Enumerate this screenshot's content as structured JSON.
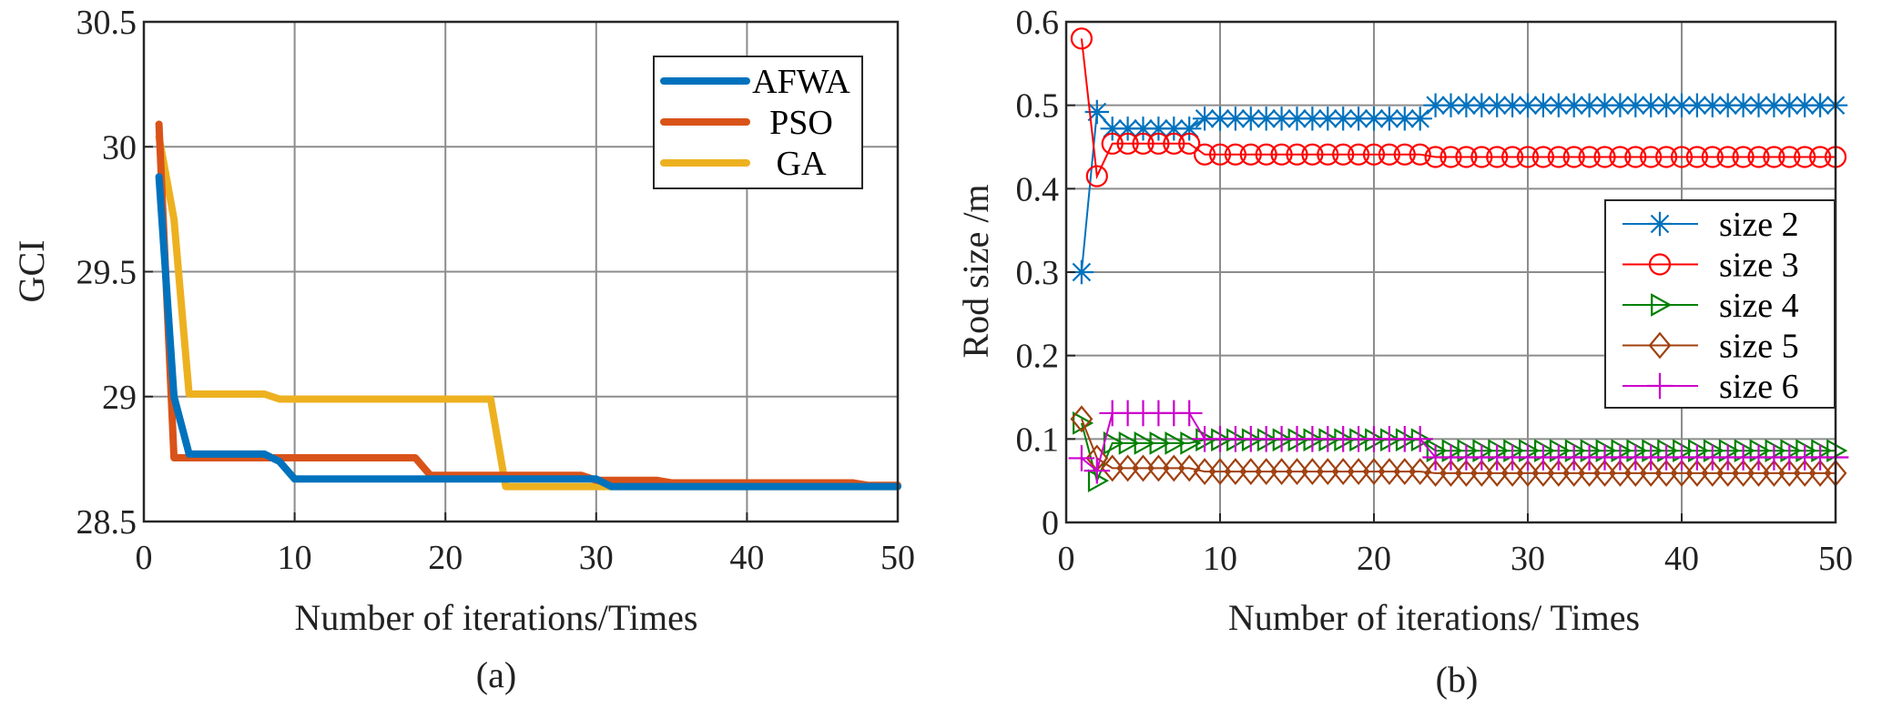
{
  "chart_data": [
    {
      "id": "a",
      "type": "line",
      "caption": "(a)",
      "title": "",
      "xlabel": "Number of iterations/Times",
      "ylabel": "GCI",
      "xlim": [
        0,
        50
      ],
      "ylim": [
        28.5,
        30.5
      ],
      "xticks": [
        0,
        10,
        20,
        30,
        40,
        50
      ],
      "xtick_labels": [
        "0",
        "10",
        "20",
        "30",
        "40",
        "50"
      ],
      "yticks": [
        28.5,
        29,
        29.5,
        30,
        30.5
      ],
      "ytick_labels": [
        "28.5",
        "29",
        "29.5",
        "30",
        "30.5"
      ],
      "grid": true,
      "legend_position": "top-right",
      "series": [
        {
          "name": "AFWA",
          "color": "#0072BD",
          "points": [
            [
              1,
              29.88
            ],
            [
              2,
              29.0
            ],
            [
              3,
              28.77
            ],
            [
              8,
              28.77
            ],
            [
              9,
              28.74
            ],
            [
              10,
              28.67
            ],
            [
              30,
              28.67
            ],
            [
              31,
              28.64
            ],
            [
              50,
              28.64
            ]
          ]
        },
        {
          "name": "PSO",
          "color": "#D95319",
          "points": [
            [
              1,
              30.09
            ],
            [
              2,
              28.755
            ],
            [
              18,
              28.755
            ],
            [
              19,
              28.685
            ],
            [
              29,
              28.685
            ],
            [
              30,
              28.665
            ],
            [
              34,
              28.665
            ],
            [
              35,
              28.655
            ],
            [
              47,
              28.655
            ],
            [
              48,
              28.645
            ],
            [
              50,
              28.645
            ]
          ]
        },
        {
          "name": "GA",
          "color": "#EDB120",
          "points": [
            [
              1,
              30.04
            ],
            [
              2,
              29.71
            ],
            [
              3,
              29.01
            ],
            [
              8,
              29.01
            ],
            [
              9,
              28.99
            ],
            [
              23,
              28.99
            ],
            [
              24,
              28.64
            ],
            [
              50,
              28.64
            ]
          ]
        }
      ]
    },
    {
      "id": "b",
      "type": "line",
      "caption": "(b)",
      "title": "",
      "xlabel": "Number of iterations/ Times",
      "ylabel": "Rod size  /m",
      "xlim": [
        0,
        50
      ],
      "ylim": [
        0,
        0.6
      ],
      "xticks": [
        0,
        10,
        20,
        30,
        40,
        50
      ],
      "xtick_labels": [
        "0",
        "10",
        "20",
        "30",
        "40",
        "50"
      ],
      "yticks": [
        0,
        0.1,
        0.2,
        0.3,
        0.4,
        0.5,
        0.6
      ],
      "ytick_labels": [
        "0",
        "0.1",
        "0.2",
        "0.3",
        "0.4",
        "0.5",
        "0.6"
      ],
      "grid": true,
      "legend_position": "right",
      "series": [
        {
          "name": "size 2",
          "color": "#0072BD",
          "marker": "asterisk",
          "segments": [
            [
              1,
              1,
              0.3
            ],
            [
              2,
              2,
              0.492
            ],
            [
              3,
              8,
              0.472
            ],
            [
              9,
              23,
              0.484
            ],
            [
              24,
              50,
              0.5
            ]
          ]
        },
        {
          "name": "size 3",
          "color": "#FF0000",
          "marker": "circle",
          "segments": [
            [
              1,
              1,
              0.58
            ],
            [
              2,
              2,
              0.415
            ],
            [
              3,
              8,
              0.454
            ],
            [
              9,
              23,
              0.441
            ],
            [
              24,
              50,
              0.438
            ]
          ]
        },
        {
          "name": "size 4",
          "color": "#008000",
          "marker": "triangle-right",
          "segments": [
            [
              1,
              1,
              0.119
            ],
            [
              2,
              2,
              0.05
            ],
            [
              3,
              8,
              0.095
            ],
            [
              9,
              23,
              0.099
            ],
            [
              24,
              50,
              0.086
            ]
          ]
        },
        {
          "name": "size 5",
          "color": "#A0400F",
          "marker": "diamond",
          "segments": [
            [
              1,
              1,
              0.124
            ],
            [
              2,
              2,
              0.077
            ],
            [
              3,
              8,
              0.065
            ],
            [
              9,
              23,
              0.061
            ],
            [
              24,
              50,
              0.059
            ]
          ]
        },
        {
          "name": "size 6",
          "color": "#CC00CC",
          "marker": "plus",
          "segments": [
            [
              1,
              1,
              0.077
            ],
            [
              2,
              2,
              0.062
            ],
            [
              3,
              8,
              0.131
            ],
            [
              9,
              23,
              0.1
            ],
            [
              24,
              50,
              0.078
            ]
          ]
        }
      ]
    }
  ]
}
